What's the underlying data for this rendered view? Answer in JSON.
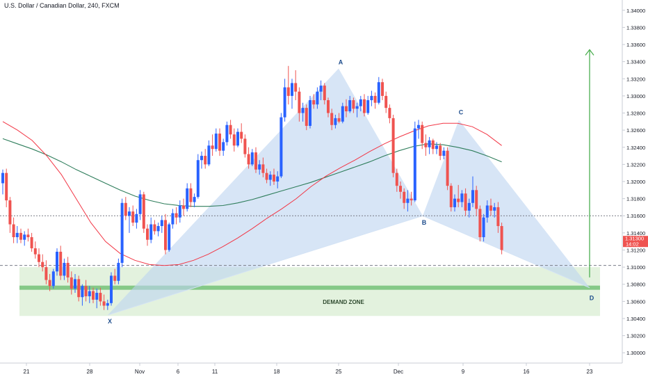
{
  "title": "U.S. Dollar / Canadian Dollar, 240, FXCM",
  "chart_data": {
    "type": "candlestick",
    "symbol": "U.S. Dollar / Canadian Dollar",
    "interval": "240",
    "source": "FXCM",
    "y_axis": {
      "ticks": [
        "1.34000",
        "1.33800",
        "1.33600",
        "1.33400",
        "1.33200",
        "1.33000",
        "1.32800",
        "1.32600",
        "1.32400",
        "1.32200",
        "1.32000",
        "1.31800",
        "1.31600",
        "1.31400",
        "1.31200",
        "1.31000",
        "1.30800",
        "1.30600",
        "1.30400",
        "1.30200",
        "1.30000"
      ],
      "range": [
        1.2988,
        1.3412
      ]
    },
    "x_axis": {
      "ticks": [
        "21",
        "28",
        "Nov",
        "6",
        "11",
        "18",
        "25",
        "Dec",
        "9",
        "16",
        "23"
      ]
    },
    "price_label": "1.31300",
    "countdown": "14:02",
    "colors": {
      "up": "#2962ff",
      "down": "#ef5350",
      "ma_fast": "#f23645",
      "ma_slow": "#2e7d5b",
      "pattern_fill": "#bcd4f0",
      "demand_fill": "#e3f2de",
      "demand_line": "#66bb6a",
      "arrow": "#4caf50",
      "label": "#1e4d8c"
    },
    "pattern": {
      "points": [
        {
          "label": "X",
          "price": 1.3044
        },
        {
          "label": "A",
          "price": 1.3332
        },
        {
          "label": "B",
          "price": 1.316
        },
        {
          "label": "C",
          "price": 1.3272
        },
        {
          "label": "D",
          "price": 1.3076
        }
      ]
    },
    "levels": {
      "resistance_dotted": 1.316,
      "support_dashed": 1.3102
    },
    "demand_zone": {
      "label": "DEMAND ZONE",
      "top": 1.31,
      "bottom": 1.3043,
      "line": 1.3076
    },
    "target_arrow": {
      "from": 1.3088,
      "to": 1.3354
    },
    "ma_fast": [
      1.327,
      1.326,
      1.3248,
      1.323,
      1.3208,
      1.318,
      1.3152,
      1.313,
      1.3116,
      1.3108,
      1.3103,
      1.3102,
      1.3103,
      1.3108,
      1.3115,
      1.3124,
      1.3134,
      1.3145,
      1.3157,
      1.3168,
      1.318,
      1.3194,
      1.3206,
      1.3216,
      1.3225,
      1.3235,
      1.3244,
      1.3252,
      1.3259,
      1.3265,
      1.3268,
      1.3268,
      1.3264,
      1.3255,
      1.3242
    ],
    "ma_slow": [
      1.325,
      1.3244,
      1.3238,
      1.3231,
      1.3223,
      1.3214,
      1.3206,
      1.3198,
      1.319,
      1.3183,
      1.3178,
      1.3174,
      1.3172,
      1.3171,
      1.3171,
      1.3172,
      1.3175,
      1.3179,
      1.3184,
      1.3189,
      1.3194,
      1.3199,
      1.3205,
      1.3211,
      1.3217,
      1.3223,
      1.323,
      1.3236,
      1.3241,
      1.3244,
      1.3243,
      1.324,
      1.3236,
      1.323,
      1.3223
    ],
    "ohlc": [
      [
        1.3198,
        1.3214,
        1.3185,
        1.321
      ],
      [
        1.321,
        1.3215,
        1.317,
        1.3178
      ],
      [
        1.3178,
        1.3182,
        1.314,
        1.315
      ],
      [
        1.315,
        1.3158,
        1.3128,
        1.3135
      ],
      [
        1.3135,
        1.3148,
        1.3128,
        1.314
      ],
      [
        1.314,
        1.3145,
        1.3128,
        1.3132
      ],
      [
        1.3132,
        1.3142,
        1.3125,
        1.3138
      ],
      [
        1.3138,
        1.3145,
        1.313,
        1.3135
      ],
      [
        1.3135,
        1.314,
        1.3118,
        1.3122
      ],
      [
        1.3122,
        1.313,
        1.311,
        1.3115
      ],
      [
        1.3115,
        1.3122,
        1.31,
        1.3106
      ],
      [
        1.3106,
        1.3115,
        1.3095,
        1.31
      ],
      [
        1.31,
        1.3108,
        1.308,
        1.3085
      ],
      [
        1.3085,
        1.3092,
        1.3072,
        1.3078
      ],
      [
        1.3078,
        1.3098,
        1.3075,
        1.3095
      ],
      [
        1.3095,
        1.3122,
        1.309,
        1.3118
      ],
      [
        1.3118,
        1.3125,
        1.3085,
        1.309
      ],
      [
        1.309,
        1.311,
        1.3085,
        1.3105
      ],
      [
        1.3105,
        1.3112,
        1.3082,
        1.3088
      ],
      [
        1.3088,
        1.3095,
        1.3068,
        1.3075
      ],
      [
        1.3075,
        1.3092,
        1.307,
        1.3086
      ],
      [
        1.3086,
        1.309,
        1.306,
        1.3065
      ],
      [
        1.3065,
        1.308,
        1.3055,
        1.3078
      ],
      [
        1.3078,
        1.3085,
        1.306,
        1.3066
      ],
      [
        1.3066,
        1.3078,
        1.3058,
        1.3072
      ],
      [
        1.3072,
        1.3076,
        1.3058,
        1.3062
      ],
      [
        1.3062,
        1.3075,
        1.3052,
        1.307
      ],
      [
        1.307,
        1.3076,
        1.3055,
        1.306
      ],
      [
        1.306,
        1.3068,
        1.305,
        1.3055
      ],
      [
        1.3055,
        1.3062,
        1.305,
        1.3058
      ],
      [
        1.3058,
        1.3094,
        1.3055,
        1.309
      ],
      [
        1.309,
        1.3098,
        1.308,
        1.3084
      ],
      [
        1.3084,
        1.311,
        1.308,
        1.3105
      ],
      [
        1.3105,
        1.318,
        1.31,
        1.3175
      ],
      [
        1.3175,
        1.3182,
        1.3155,
        1.316
      ],
      [
        1.316,
        1.317,
        1.314,
        1.3165
      ],
      [
        1.3165,
        1.3172,
        1.3148,
        1.3152
      ],
      [
        1.3152,
        1.3168,
        1.3145,
        1.3162
      ],
      [
        1.3162,
        1.319,
        1.3155,
        1.3185
      ],
      [
        1.3185,
        1.3188,
        1.314,
        1.3145
      ],
      [
        1.3145,
        1.315,
        1.3125,
        1.3132
      ],
      [
        1.3132,
        1.3158,
        1.3128,
        1.315
      ],
      [
        1.315,
        1.3155,
        1.3138,
        1.3142
      ],
      [
        1.3142,
        1.3152,
        1.3136,
        1.3148
      ],
      [
        1.3148,
        1.316,
        1.314,
        1.3155
      ],
      [
        1.3155,
        1.3162,
        1.3115,
        1.312
      ],
      [
        1.312,
        1.3152,
        1.3118,
        1.315
      ],
      [
        1.315,
        1.3168,
        1.3145,
        1.3163
      ],
      [
        1.3163,
        1.317,
        1.315,
        1.3158
      ],
      [
        1.3158,
        1.3178,
        1.3152,
        1.3172
      ],
      [
        1.3172,
        1.318,
        1.316,
        1.3168
      ],
      [
        1.3168,
        1.3198,
        1.3165,
        1.3192
      ],
      [
        1.3192,
        1.3198,
        1.317,
        1.3176
      ],
      [
        1.3176,
        1.3186,
        1.317,
        1.3182
      ],
      [
        1.3182,
        1.3232,
        1.318,
        1.3225
      ],
      [
        1.3225,
        1.3235,
        1.3215,
        1.323
      ],
      [
        1.323,
        1.3238,
        1.3215,
        1.322
      ],
      [
        1.322,
        1.3248,
        1.3218,
        1.3242
      ],
      [
        1.3242,
        1.3255,
        1.323,
        1.3238
      ],
      [
        1.3238,
        1.3262,
        1.3235,
        1.3256
      ],
      [
        1.3256,
        1.3262,
        1.323,
        1.3236
      ],
      [
        1.3236,
        1.325,
        1.323,
        1.3246
      ],
      [
        1.3246,
        1.327,
        1.3242,
        1.3266
      ],
      [
        1.3266,
        1.3272,
        1.325,
        1.3255
      ],
      [
        1.3255,
        1.3262,
        1.3235,
        1.3242
      ],
      [
        1.3242,
        1.3262,
        1.324,
        1.3258
      ],
      [
        1.3258,
        1.3268,
        1.3245,
        1.325
      ],
      [
        1.325,
        1.3255,
        1.3228,
        1.3232
      ],
      [
        1.3232,
        1.324,
        1.3215,
        1.322
      ],
      [
        1.322,
        1.3238,
        1.3218,
        1.3234
      ],
      [
        1.3234,
        1.324,
        1.321,
        1.3214
      ],
      [
        1.3214,
        1.3225,
        1.3208,
        1.322
      ],
      [
        1.322,
        1.3228,
        1.3205,
        1.321
      ],
      [
        1.321,
        1.3215,
        1.3198,
        1.3202
      ],
      [
        1.3202,
        1.3212,
        1.3195,
        1.3208
      ],
      [
        1.3208,
        1.3215,
        1.3196,
        1.32
      ],
      [
        1.32,
        1.3212,
        1.3192,
        1.3206
      ],
      [
        1.3206,
        1.328,
        1.3204,
        1.3275
      ],
      [
        1.3275,
        1.332,
        1.327,
        1.331
      ],
      [
        1.331,
        1.3335,
        1.329,
        1.33
      ],
      [
        1.33,
        1.332,
        1.3285,
        1.3315
      ],
      [
        1.3315,
        1.333,
        1.3295,
        1.3305
      ],
      [
        1.3305,
        1.331,
        1.327,
        1.328
      ],
      [
        1.328,
        1.3292,
        1.327,
        1.3286
      ],
      [
        1.3286,
        1.329,
        1.326,
        1.3265
      ],
      [
        1.3265,
        1.33,
        1.3262,
        1.3295
      ],
      [
        1.3295,
        1.3302,
        1.3285,
        1.329
      ],
      [
        1.329,
        1.331,
        1.3285,
        1.3305
      ],
      [
        1.3305,
        1.3318,
        1.3295,
        1.3312
      ],
      [
        1.3312,
        1.3315,
        1.329,
        1.3295
      ],
      [
        1.3295,
        1.3298,
        1.3275,
        1.328
      ],
      [
        1.328,
        1.3285,
        1.326,
        1.3266
      ],
      [
        1.3266,
        1.3278,
        1.3262,
        1.3274
      ],
      [
        1.3274,
        1.328,
        1.3268,
        1.327
      ],
      [
        1.327,
        1.3292,
        1.3268,
        1.3288
      ],
      [
        1.3288,
        1.3296,
        1.3275,
        1.3282
      ],
      [
        1.3282,
        1.33,
        1.328,
        1.3295
      ],
      [
        1.3295,
        1.3298,
        1.328,
        1.3285
      ],
      [
        1.3285,
        1.3292,
        1.3275,
        1.3288
      ],
      [
        1.3288,
        1.33,
        1.3282,
        1.3296
      ],
      [
        1.3296,
        1.3302,
        1.3276,
        1.328
      ],
      [
        1.328,
        1.33,
        1.3278,
        1.3295
      ],
      [
        1.3295,
        1.3306,
        1.3288,
        1.33
      ],
      [
        1.33,
        1.3304,
        1.3285,
        1.3292
      ],
      [
        1.3292,
        1.3322,
        1.329,
        1.3316
      ],
      [
        1.3316,
        1.332,
        1.3295,
        1.33
      ],
      [
        1.33,
        1.3305,
        1.328,
        1.3286
      ],
      [
        1.3286,
        1.329,
        1.3268,
        1.3274
      ],
      [
        1.3274,
        1.3278,
        1.3205,
        1.321
      ],
      [
        1.321,
        1.3215,
        1.3188,
        1.3195
      ],
      [
        1.3195,
        1.32,
        1.318,
        1.3188
      ],
      [
        1.3188,
        1.3192,
        1.3168,
        1.3175
      ],
      [
        1.3175,
        1.319,
        1.3165,
        1.318
      ],
      [
        1.318,
        1.3188,
        1.3172,
        1.3178
      ],
      [
        1.3178,
        1.327,
        1.3176,
        1.3262
      ],
      [
        1.3262,
        1.3272,
        1.325,
        1.3266
      ],
      [
        1.3266,
        1.327,
        1.3238,
        1.3245
      ],
      [
        1.3245,
        1.3255,
        1.323,
        1.324
      ],
      [
        1.324,
        1.3252,
        1.3232,
        1.3248
      ],
      [
        1.3248,
        1.325,
        1.3232,
        1.3238
      ],
      [
        1.3238,
        1.3246,
        1.3232,
        1.3242
      ],
      [
        1.3242,
        1.3245,
        1.3225,
        1.323
      ],
      [
        1.323,
        1.324,
        1.3226,
        1.3236
      ],
      [
        1.3236,
        1.324,
        1.319,
        1.3195
      ],
      [
        1.3195,
        1.3198,
        1.3165,
        1.317
      ],
      [
        1.317,
        1.3185,
        1.3165,
        1.318
      ],
      [
        1.318,
        1.3196,
        1.317,
        1.3176
      ],
      [
        1.3176,
        1.319,
        1.317,
        1.3186
      ],
      [
        1.3186,
        1.3192,
        1.316,
        1.3166
      ],
      [
        1.3166,
        1.318,
        1.3158,
        1.3175
      ],
      [
        1.3175,
        1.3206,
        1.317,
        1.319
      ],
      [
        1.319,
        1.3195,
        1.316,
        1.3168
      ],
      [
        1.3168,
        1.3172,
        1.313,
        1.3135
      ],
      [
        1.3135,
        1.3162,
        1.313,
        1.3158
      ],
      [
        1.3158,
        1.3178,
        1.3152,
        1.3172
      ],
      [
        1.3172,
        1.318,
        1.316,
        1.3166
      ],
      [
        1.3166,
        1.3175,
        1.3158,
        1.317
      ],
      [
        1.317,
        1.3176,
        1.314,
        1.3148
      ],
      [
        1.3148,
        1.3152,
        1.3115,
        1.312
      ]
    ]
  }
}
